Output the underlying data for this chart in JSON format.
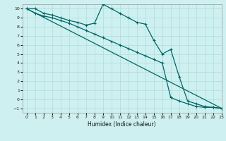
{
  "xlabel": "Humidex (Indice chaleur)",
  "bg_color": "#cff0f0",
  "grid_color": "#aadddd",
  "line_color": "#006666",
  "xlim": [
    -0.5,
    23
  ],
  "ylim": [
    -1.5,
    10.5
  ],
  "xticks": [
    0,
    1,
    2,
    3,
    4,
    5,
    6,
    7,
    8,
    9,
    10,
    11,
    12,
    13,
    14,
    15,
    16,
    17,
    18,
    19,
    20,
    21,
    22,
    23
  ],
  "yticks": [
    -1,
    0,
    1,
    2,
    3,
    4,
    5,
    6,
    7,
    8,
    9,
    10
  ],
  "line1_x": [
    0,
    1,
    2,
    3,
    4,
    5,
    6,
    7,
    8,
    9,
    10,
    11,
    12,
    13,
    14,
    15,
    16,
    17,
    18,
    19,
    20,
    21,
    22,
    23
  ],
  "line1_y": [
    10.0,
    10.0,
    9.5,
    9.3,
    9.0,
    8.7,
    8.5,
    8.2,
    8.4,
    10.5,
    10.0,
    9.5,
    9.0,
    8.5,
    8.3,
    6.5,
    5.0,
    5.5,
    2.5,
    -0.2,
    -0.5,
    -0.8,
    -0.9,
    -1.0
  ],
  "line2_x": [
    0,
    1,
    2,
    3,
    4,
    5,
    6,
    7,
    8,
    9,
    10,
    11,
    12,
    13,
    14,
    15,
    16,
    17,
    18,
    19,
    20,
    21,
    22,
    23
  ],
  "line2_y": [
    10.0,
    9.5,
    9.2,
    9.0,
    8.7,
    8.4,
    8.0,
    7.6,
    7.2,
    6.8,
    6.4,
    6.0,
    5.6,
    5.2,
    4.8,
    4.4,
    4.0,
    0.2,
    -0.2,
    -0.5,
    -0.8,
    -0.9,
    -0.9,
    -1.0
  ],
  "line3_x": [
    0,
    23
  ],
  "line3_y": [
    10.0,
    -1.0
  ]
}
